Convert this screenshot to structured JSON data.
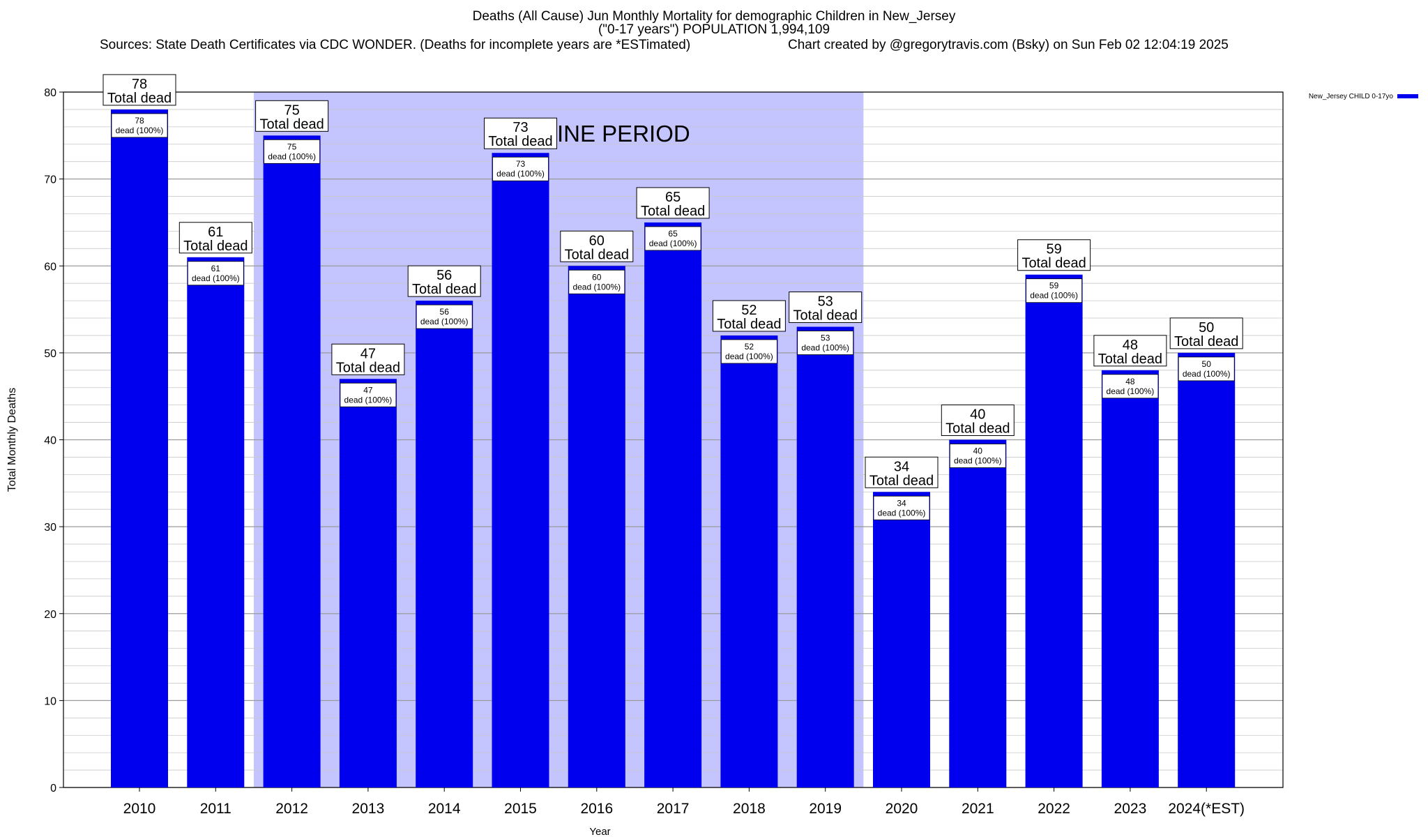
{
  "header": {
    "title": "Deaths (All Cause) Jun Monthly Mortality for demographic Children in New_Jersey",
    "subtitle": "(\"0-17 years\") POPULATION 1,994,109",
    "sources": "Sources: State Death Certificates via CDC WONDER. (Deaths for incomplete years are *ESTimated)",
    "credit": "Chart created by @gregorytravis.com (Bsky) on Sun Feb 02 12:04:19 2025"
  },
  "chart_data": {
    "type": "bar",
    "xlabel": "Year",
    "ylabel": "Total Monthly Deaths",
    "ylim": [
      0,
      80
    ],
    "yticks": [
      0,
      10,
      20,
      30,
      40,
      50,
      60,
      70,
      80
    ],
    "categories": [
      "2010",
      "2011",
      "2012",
      "2013",
      "2014",
      "2015",
      "2016",
      "2017",
      "2018",
      "2019",
      "2020",
      "2021",
      "2022",
      "2023",
      "2024(*EST)"
    ],
    "series": [
      {
        "name": "New_Jersey CHILD 0-17yo",
        "color": "#0000ee",
        "values": [
          78,
          61,
          75,
          47,
          56,
          73,
          60,
          65,
          52,
          53,
          34,
          40,
          59,
          48,
          50
        ]
      }
    ],
    "top_label_suffix": "Total dead",
    "inner_labels": [
      "dead (100%)",
      "dead (100%)",
      "dead (100%)",
      "dead (100%)",
      "dead (100%)",
      "dead (100%)",
      "dead (100%)",
      "dead (100%)",
      "dead (100%)",
      "dead (100%)",
      "dead (100%)",
      "dead (100%)",
      "dead (100%)",
      "dead (100%)",
      "dead (100%)"
    ],
    "baseline": {
      "label": "BASELINE PERIOD",
      "from": "2012",
      "to": "2019",
      "color": "#c4c4ff"
    },
    "legend_position": "top-right",
    "grid": true
  }
}
